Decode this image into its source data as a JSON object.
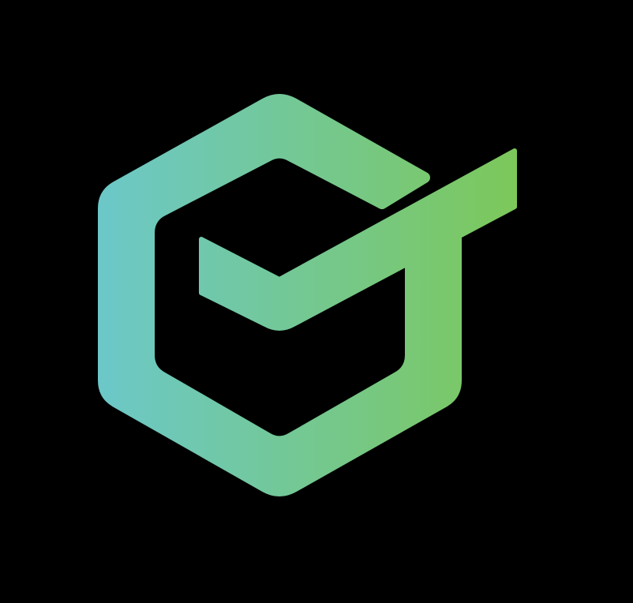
{
  "canvas": {
    "background": "#000000"
  },
  "logo": {
    "icon": "hexagon-checkmark-logo-icon",
    "gradient_start": "#6CC8C8",
    "gradient_end": "#7CC85A"
  }
}
